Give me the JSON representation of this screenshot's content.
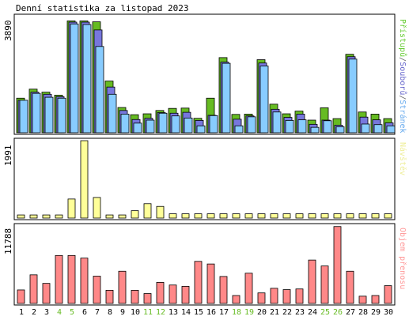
{
  "chart_data": [
    {
      "type": "bar",
      "title": "Denní statistika za listopad 2023",
      "ymax_label": "3890",
      "ylim": [
        0,
        3890
      ],
      "legend": [
        {
          "text": "Přístupů",
          "color": "#66cc33"
        },
        {
          "text": "/",
          "color": "#666666"
        },
        {
          "text": "Souborů",
          "color": "#6666cc"
        },
        {
          "text": "/",
          "color": "#666666"
        },
        {
          "text": "Stránek",
          "color": "#66aaee"
        }
      ],
      "series": [
        {
          "name": "Přístupů",
          "color": "#66bb22",
          "values": [
            1150,
            1450,
            1350,
            1250,
            3720,
            3720,
            3690,
            1720,
            840,
            600,
            630,
            740,
            810,
            820,
            480,
            1150,
            2500,
            610,
            620,
            2430,
            950,
            630,
            720,
            420,
            830,
            470,
            2610,
            690,
            620,
            470
          ]
        },
        {
          "name": "Souborů",
          "color": "#7777dd",
          "values": [
            1080,
            1350,
            1280,
            1200,
            3680,
            3680,
            3420,
            1520,
            740,
            440,
            480,
            670,
            650,
            680,
            410,
            580,
            2350,
            450,
            560,
            2320,
            780,
            510,
            620,
            280,
            420,
            250,
            2530,
            520,
            430,
            330
          ]
        },
        {
          "name": "Stránek",
          "color": "#88ccff",
          "values": [
            1080,
            1310,
            1180,
            1150,
            3620,
            3600,
            2870,
            1280,
            620,
            320,
            420,
            650,
            560,
            490,
            230,
            570,
            2310,
            230,
            530,
            2220,
            690,
            410,
            430,
            180,
            400,
            200,
            2450,
            290,
            270,
            230
          ]
        }
      ]
    },
    {
      "type": "bar",
      "ymax_label": "1991",
      "ylim": [
        0,
        1991
      ],
      "legend": [
        {
          "text": "Návštěv",
          "color": "#eeee99"
        }
      ],
      "series": [
        {
          "name": "Návštěv",
          "color": "#ffff99",
          "values": [
            80,
            80,
            80,
            80,
            490,
            1990,
            530,
            80,
            80,
            190,
            370,
            300,
            110,
            110,
            110,
            110,
            110,
            110,
            110,
            110,
            110,
            110,
            110,
            110,
            110,
            110,
            110,
            110,
            110,
            110
          ]
        }
      ]
    },
    {
      "type": "bar",
      "ymax_label": "11788",
      "ylim": [
        0,
        11788
      ],
      "legend": [
        {
          "text": "Objem přenosu",
          "color": "#ff9999"
        }
      ],
      "series": [
        {
          "name": "Objem přenosu",
          "color": "#ff8888",
          "values": [
            2050,
            4350,
            3050,
            7300,
            7300,
            6900,
            4150,
            2000,
            4900,
            2000,
            1500,
            3200,
            2800,
            2600,
            6400,
            6000,
            4100,
            1200,
            4600,
            1600,
            2300,
            2100,
            2200,
            6600,
            5700,
            11700,
            4900,
            1100,
            1200,
            2700
          ]
        }
      ]
    }
  ],
  "x_labels": [
    "1",
    "2",
    "3",
    "4",
    "5",
    "6",
    "7",
    "8",
    "9",
    "10",
    "11",
    "12",
    "13",
    "14",
    "15",
    "16",
    "17",
    "18",
    "19",
    "20",
    "21",
    "22",
    "23",
    "24",
    "25",
    "26",
    "27",
    "28",
    "29",
    "30"
  ],
  "weekend_days": [
    "4",
    "5",
    "11",
    "12",
    "18",
    "19",
    "25",
    "26"
  ],
  "colors": {
    "weekday_label": "#000000",
    "weekend_label": "#66bb22",
    "frame": "#000000",
    "bar_outline": "#000000"
  }
}
